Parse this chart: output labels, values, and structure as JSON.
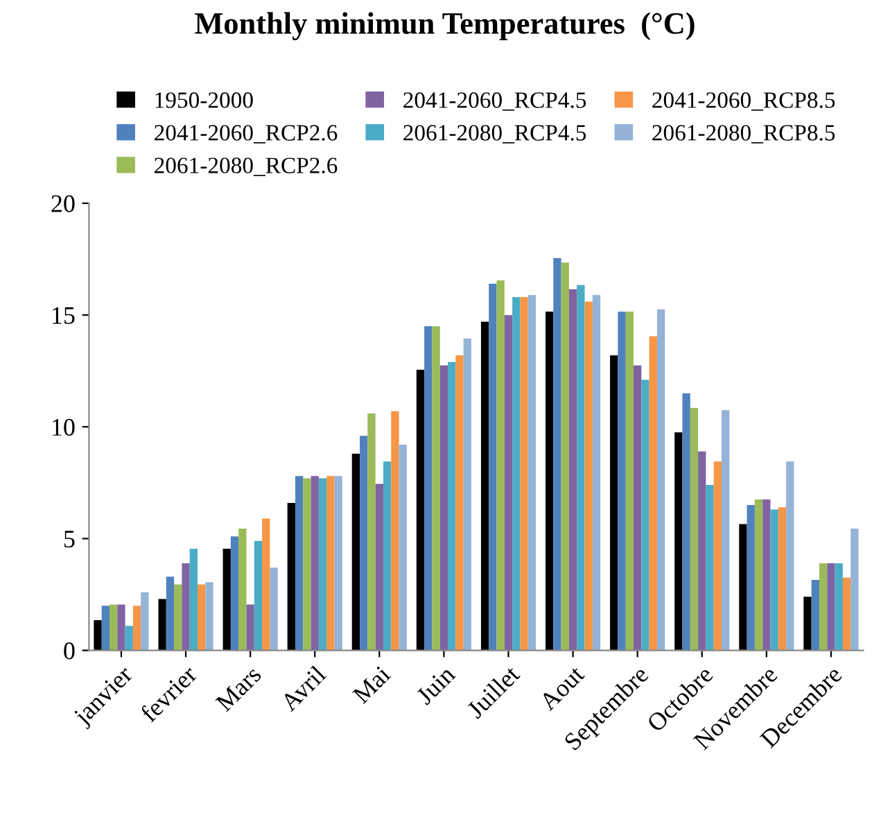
{
  "chart_data": {
    "type": "bar",
    "title": "Monthly minimun Temperatures  (°C)",
    "categories": [
      "janvier",
      "fevrier",
      "Mars",
      "Avril",
      "Mai",
      "Juin",
      "Juillet",
      "Aout",
      "Septembre",
      "Octobre",
      "Novembre",
      "Decembre"
    ],
    "series": [
      {
        "name": "1950-2000",
        "color": "#000000",
        "values": [
          1.35,
          2.3,
          4.55,
          6.6,
          8.8,
          12.55,
          14.7,
          15.15,
          13.2,
          9.75,
          5.65,
          2.4
        ]
      },
      {
        "name": "2041-2060_RCP2.6",
        "color": "#4f81bd",
        "values": [
          2.0,
          3.3,
          5.1,
          7.8,
          9.6,
          14.5,
          16.4,
          17.55,
          15.15,
          11.5,
          6.5,
          3.15
        ]
      },
      {
        "name": "2061-2080_RCP2.6",
        "color": "#9bbb59",
        "values": [
          2.05,
          2.95,
          5.45,
          7.7,
          10.6,
          14.5,
          16.55,
          17.35,
          15.15,
          10.85,
          6.75,
          3.9
        ]
      },
      {
        "name": "2041-2060_RCP4.5",
        "color": "#8064a2",
        "values": [
          2.05,
          3.9,
          2.05,
          7.8,
          7.45,
          12.75,
          15.0,
          16.15,
          12.75,
          8.9,
          6.75,
          3.9
        ]
      },
      {
        "name": "2061-2080_RCP4.5",
        "color": "#4bacc6",
        "values": [
          1.1,
          4.55,
          4.9,
          7.7,
          8.45,
          12.9,
          15.8,
          16.35,
          12.1,
          7.4,
          6.3,
          3.9
        ]
      },
      {
        "name": "2041-2060_RCP8.5",
        "color": "#f79646",
        "values": [
          2.0,
          2.95,
          5.9,
          7.8,
          10.7,
          13.2,
          15.8,
          15.6,
          14.05,
          8.45,
          6.4,
          3.25
        ]
      },
      {
        "name": "2061-2080_RCP8.5",
        "color": "#95b3d7",
        "values": [
          2.6,
          3.05,
          3.7,
          7.8,
          9.2,
          13.95,
          15.9,
          15.9,
          15.25,
          10.75,
          8.45,
          5.45
        ]
      }
    ],
    "ylim": [
      0,
      20
    ],
    "yticks": [
      0,
      5,
      10,
      15,
      20
    ],
    "grid": false,
    "legend": "top"
  }
}
